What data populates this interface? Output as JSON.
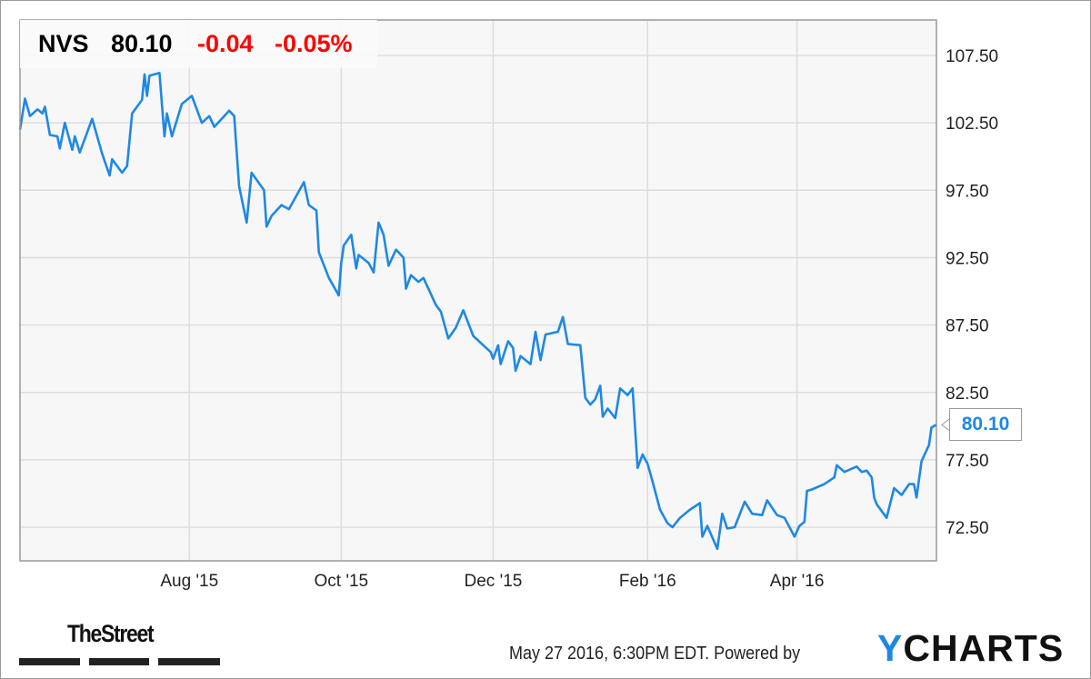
{
  "header": {
    "ticker": "NVS",
    "price": "80.10",
    "change": "-0.04",
    "change_pct": "-0.05%"
  },
  "last_value_label": "80.10",
  "footer": {
    "timestamp": "May 27 2016, 6:30PM EDT.",
    "powered_by": "Powered by",
    "ycharts_y": "Y",
    "ycharts_rest": "CHARTS",
    "thestreet": "TheStreet"
  },
  "colors": {
    "line": "#1e88e5",
    "negative": "#ff0000",
    "grid": "#dddddd",
    "plot_bg": "#f7f7f7"
  },
  "chart_data": {
    "type": "line",
    "title": "",
    "xlabel": "",
    "ylabel": "",
    "grid": true,
    "ylim": [
      70.0,
      110.0
    ],
    "xlim": [
      "2015-05-25",
      "2016-05-27"
    ],
    "y_ticks": [
      "107.50",
      "102.50",
      "97.50",
      "92.50",
      "87.50",
      "82.50",
      "77.50",
      "72.50"
    ],
    "x_ticks": [
      {
        "date": "2015-08-01",
        "label": "Aug '15"
      },
      {
        "date": "2015-10-01",
        "label": "Oct '15"
      },
      {
        "date": "2015-12-01",
        "label": "Dec '15"
      },
      {
        "date": "2016-02-01",
        "label": "Feb '16"
      },
      {
        "date": "2016-04-01",
        "label": "Apr '16"
      }
    ],
    "series": [
      {
        "points": [
          [
            "2015-05-25",
            102.0
          ],
          [
            "2015-05-27",
            104.3
          ],
          [
            "2015-05-29",
            103.0
          ],
          [
            "2015-06-01",
            103.5
          ],
          [
            "2015-06-03",
            103.2
          ],
          [
            "2015-06-04",
            103.7
          ],
          [
            "2015-06-06",
            101.6
          ],
          [
            "2015-06-09",
            101.5
          ],
          [
            "2015-06-10",
            100.6
          ],
          [
            "2015-06-12",
            102.5
          ],
          [
            "2015-06-15",
            100.5
          ],
          [
            "2015-06-16",
            101.5
          ],
          [
            "2015-06-18",
            100.3
          ],
          [
            "2015-06-23",
            102.8
          ],
          [
            "2015-06-27",
            100.2
          ],
          [
            "2015-06-30",
            98.6
          ],
          [
            "2015-07-01",
            99.8
          ],
          [
            "2015-07-05",
            98.8
          ],
          [
            "2015-07-07",
            99.3
          ],
          [
            "2015-07-09",
            103.2
          ],
          [
            "2015-07-13",
            104.2
          ],
          [
            "2015-07-14",
            106.1
          ],
          [
            "2015-07-15",
            104.5
          ],
          [
            "2015-07-16",
            106.0
          ],
          [
            "2015-07-20",
            106.2
          ],
          [
            "2015-07-22",
            101.5
          ],
          [
            "2015-07-23",
            103.2
          ],
          [
            "2015-07-25",
            101.5
          ],
          [
            "2015-07-29",
            103.9
          ],
          [
            "2015-08-02",
            104.5
          ],
          [
            "2015-08-06",
            102.5
          ],
          [
            "2015-08-09",
            103.0
          ],
          [
            "2015-08-11",
            102.2
          ],
          [
            "2015-08-17",
            103.4
          ],
          [
            "2015-08-19",
            103.0
          ],
          [
            "2015-08-21",
            97.8
          ],
          [
            "2015-08-24",
            95.1
          ],
          [
            "2015-08-26",
            98.8
          ],
          [
            "2015-08-31",
            97.5
          ],
          [
            "2015-09-01",
            94.8
          ],
          [
            "2015-09-03",
            95.6
          ],
          [
            "2015-09-07",
            96.4
          ],
          [
            "2015-09-10",
            96.1
          ],
          [
            "2015-09-16",
            98.1
          ],
          [
            "2015-09-18",
            96.4
          ],
          [
            "2015-09-21",
            96.0
          ],
          [
            "2015-09-22",
            92.9
          ],
          [
            "2015-09-26",
            91.0
          ],
          [
            "2015-09-30",
            89.7
          ],
          [
            "2015-10-01",
            92.1
          ],
          [
            "2015-10-02",
            93.4
          ],
          [
            "2015-10-05",
            94.2
          ],
          [
            "2015-10-07",
            91.7
          ],
          [
            "2015-10-08",
            92.7
          ],
          [
            "2015-10-12",
            92.1
          ],
          [
            "2015-10-14",
            91.4
          ],
          [
            "2015-10-16",
            95.1
          ],
          [
            "2015-10-18",
            94.2
          ],
          [
            "2015-10-20",
            91.9
          ],
          [
            "2015-10-23",
            93.1
          ],
          [
            "2015-10-26",
            92.5
          ],
          [
            "2015-10-27",
            90.2
          ],
          [
            "2015-10-29",
            91.2
          ],
          [
            "2015-11-01",
            90.7
          ],
          [
            "2015-11-03",
            91.0
          ],
          [
            "2015-11-05",
            90.2
          ],
          [
            "2015-11-08",
            89.0
          ],
          [
            "2015-11-10",
            88.5
          ],
          [
            "2015-11-13",
            86.5
          ],
          [
            "2015-11-16",
            87.3
          ],
          [
            "2015-11-19",
            88.6
          ],
          [
            "2015-11-23",
            86.7
          ],
          [
            "2015-11-27",
            86.0
          ],
          [
            "2015-11-30",
            85.5
          ],
          [
            "2015-12-01",
            85.0
          ],
          [
            "2015-12-03",
            86.0
          ],
          [
            "2015-12-04",
            84.6
          ],
          [
            "2015-12-07",
            86.3
          ],
          [
            "2015-12-09",
            85.8
          ],
          [
            "2015-12-10",
            84.1
          ],
          [
            "2015-12-12",
            85.2
          ],
          [
            "2015-12-16",
            84.6
          ],
          [
            "2015-12-18",
            87.0
          ],
          [
            "2015-12-20",
            84.9
          ],
          [
            "2015-12-22",
            86.8
          ],
          [
            "2015-12-27",
            87.0
          ],
          [
            "2015-12-29",
            88.1
          ],
          [
            "2015-12-31",
            86.1
          ],
          [
            "2016-01-05",
            86.0
          ],
          [
            "2016-01-07",
            82.1
          ],
          [
            "2016-01-09",
            81.6
          ],
          [
            "2016-01-11",
            82.0
          ],
          [
            "2016-01-13",
            83.0
          ],
          [
            "2016-01-14",
            80.7
          ],
          [
            "2016-01-16",
            81.3
          ],
          [
            "2016-01-19",
            80.6
          ],
          [
            "2016-01-21",
            82.8
          ],
          [
            "2016-01-24",
            82.3
          ],
          [
            "2016-01-26",
            82.8
          ],
          [
            "2016-01-28",
            76.9
          ],
          [
            "2016-01-30",
            77.9
          ],
          [
            "2016-02-01",
            77.2
          ],
          [
            "2016-02-03",
            75.9
          ],
          [
            "2016-02-06",
            73.8
          ],
          [
            "2016-02-09",
            72.8
          ],
          [
            "2016-02-11",
            72.5
          ],
          [
            "2016-02-14",
            73.2
          ],
          [
            "2016-02-18",
            73.8
          ],
          [
            "2016-02-22",
            74.3
          ],
          [
            "2016-02-23",
            71.8
          ],
          [
            "2016-02-25",
            72.6
          ],
          [
            "2016-02-29",
            70.9
          ],
          [
            "2016-03-02",
            73.5
          ],
          [
            "2016-03-04",
            72.4
          ],
          [
            "2016-03-07",
            72.5
          ],
          [
            "2016-03-11",
            74.4
          ],
          [
            "2016-03-14",
            73.5
          ],
          [
            "2016-03-18",
            73.4
          ],
          [
            "2016-03-20",
            74.5
          ],
          [
            "2016-03-24",
            73.4
          ],
          [
            "2016-03-27",
            73.2
          ],
          [
            "2016-03-31",
            71.8
          ],
          [
            "2016-04-02",
            72.6
          ],
          [
            "2016-04-04",
            72.9
          ],
          [
            "2016-04-05",
            75.2
          ],
          [
            "2016-04-07",
            75.3
          ],
          [
            "2016-04-12",
            75.7
          ],
          [
            "2016-04-16",
            76.2
          ],
          [
            "2016-04-17",
            77.1
          ],
          [
            "2016-04-20",
            76.6
          ],
          [
            "2016-04-25",
            77.0
          ],
          [
            "2016-04-27",
            76.6
          ],
          [
            "2016-04-29",
            76.7
          ],
          [
            "2016-05-01",
            76.2
          ],
          [
            "2016-05-02",
            74.7
          ],
          [
            "2016-05-03",
            74.2
          ],
          [
            "2016-05-07",
            73.2
          ],
          [
            "2016-05-10",
            75.4
          ],
          [
            "2016-05-13",
            74.9
          ],
          [
            "2016-05-16",
            75.7
          ],
          [
            "2016-05-18",
            75.7
          ],
          [
            "2016-05-19",
            74.7
          ],
          [
            "2016-05-21",
            77.4
          ],
          [
            "2016-05-24",
            78.6
          ],
          [
            "2016-05-25",
            79.9
          ],
          [
            "2016-05-27",
            80.1
          ]
        ]
      }
    ]
  }
}
